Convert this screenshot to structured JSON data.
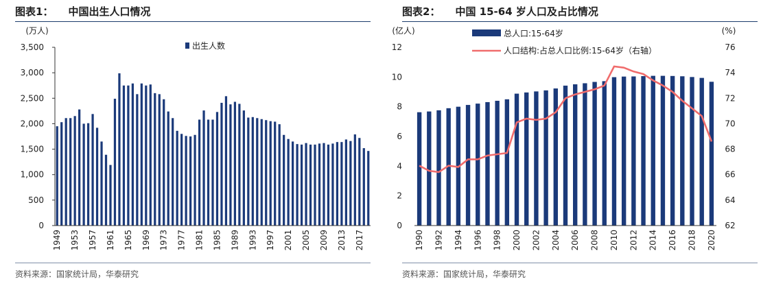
{
  "charts": [
    {
      "tag": "图表1：",
      "title": "中国出生人口情况",
      "source": "资料来源：国家统计局，华泰研究"
    },
    {
      "tag": "图表2：",
      "title": "中国 15-64 岁人口及占比情况",
      "source": "资料来源：国家统计局，华泰研究"
    }
  ],
  "chart_data": [
    {
      "type": "bar",
      "unit_label": "(万人)",
      "ylim": [
        0,
        3500
      ],
      "yticks": [
        0,
        500,
        1000,
        1500,
        2000,
        2500,
        3000,
        3500
      ],
      "ytick_labels": [
        "0",
        "500",
        "1,000",
        "1,500",
        "2,000",
        "2,500",
        "3,000",
        "3,500"
      ],
      "x_ticks_shown": [
        "1949",
        "1953",
        "1957",
        "1961",
        "1965",
        "1969",
        "1973",
        "1977",
        "1981",
        "1985",
        "1989",
        "1993",
        "1997",
        "2001",
        "2005",
        "2009",
        "2013",
        "2017"
      ],
      "legend_position": "top-center",
      "series": [
        {
          "name": "出生人数",
          "color": "#1b3a7a",
          "x": [
            1949,
            1950,
            1951,
            1952,
            1953,
            1954,
            1955,
            1956,
            1957,
            1958,
            1959,
            1960,
            1961,
            1962,
            1963,
            1964,
            1965,
            1966,
            1967,
            1968,
            1969,
            1970,
            1971,
            1972,
            1973,
            1974,
            1975,
            1976,
            1977,
            1978,
            1979,
            1980,
            1981,
            1982,
            1983,
            1984,
            1985,
            1986,
            1987,
            1988,
            1989,
            1990,
            1991,
            1992,
            1993,
            1994,
            1995,
            1996,
            1997,
            1998,
            1999,
            2000,
            2001,
            2002,
            2003,
            2004,
            2005,
            2006,
            2007,
            2008,
            2009,
            2010,
            2011,
            2012,
            2013,
            2014,
            2015,
            2016,
            2017,
            2018,
            2019
          ],
          "values": [
            1950,
            2030,
            2110,
            2110,
            2150,
            2280,
            2000,
            2010,
            2190,
            1920,
            1650,
            1390,
            1190,
            2490,
            2990,
            2750,
            2750,
            2790,
            2580,
            2790,
            2750,
            2770,
            2600,
            2580,
            2480,
            2240,
            2110,
            1860,
            1800,
            1760,
            1750,
            1780,
            2080,
            2260,
            2080,
            2080,
            2230,
            2410,
            2540,
            2380,
            2430,
            2390,
            2260,
            2120,
            2130,
            2110,
            2090,
            2070,
            2050,
            2040,
            1990,
            1780,
            1700,
            1650,
            1600,
            1590,
            1620,
            1590,
            1590,
            1610,
            1620,
            1590,
            1610,
            1640,
            1640,
            1690,
            1660,
            1790,
            1720,
            1520,
            1465
          ]
        }
      ]
    },
    {
      "type": "bar+line",
      "left_unit_label": "(亿人)",
      "right_unit_label": "(%)",
      "ylim_left": [
        0,
        12
      ],
      "yticks_left": [
        0,
        2,
        4,
        6,
        8,
        10,
        12
      ],
      "ylim_right": [
        62,
        76
      ],
      "yticks_right": [
        62,
        64,
        66,
        68,
        70,
        72,
        74,
        76
      ],
      "x_ticks_shown": [
        "1990",
        "1992",
        "1994",
        "1996",
        "1998",
        "2000",
        "2002",
        "2004",
        "2006",
        "2008",
        "2010",
        "2012",
        "2014",
        "2016",
        "2018",
        "2020"
      ],
      "legend_position": "top-center",
      "x": [
        1990,
        1991,
        1992,
        1993,
        1994,
        1995,
        1996,
        1997,
        1998,
        1999,
        2000,
        2001,
        2002,
        2003,
        2004,
        2005,
        2006,
        2007,
        2008,
        2009,
        2010,
        2011,
        2012,
        2013,
        2014,
        2015,
        2016,
        2017,
        2018,
        2019,
        2020
      ],
      "series": [
        {
          "name": "总人口:15-64岁",
          "type": "bar",
          "axis": "left",
          "color": "#1b3a7a",
          "values": [
            7.63,
            7.68,
            7.76,
            7.9,
            8.0,
            8.12,
            8.21,
            8.31,
            8.4,
            8.5,
            8.88,
            8.96,
            9.03,
            9.1,
            9.23,
            9.42,
            9.51,
            9.58,
            9.67,
            9.72,
            9.99,
            10.03,
            10.04,
            10.06,
            10.08,
            10.08,
            10.07,
            10.05,
            10.0,
            9.94,
            9.68
          ]
        },
        {
          "name": "人口结构:占总人口比例:15-64岁（右轴）",
          "type": "line",
          "axis": "right",
          "color": "#f06c6c",
          "values": [
            66.7,
            66.3,
            66.2,
            66.7,
            66.6,
            67.2,
            67.2,
            67.5,
            67.6,
            67.7,
            70.1,
            70.4,
            70.3,
            70.4,
            70.9,
            72.0,
            72.3,
            72.5,
            72.7,
            73.0,
            74.5,
            74.4,
            74.1,
            73.9,
            73.4,
            73.0,
            72.5,
            71.8,
            71.2,
            70.6,
            68.6
          ]
        }
      ]
    }
  ]
}
